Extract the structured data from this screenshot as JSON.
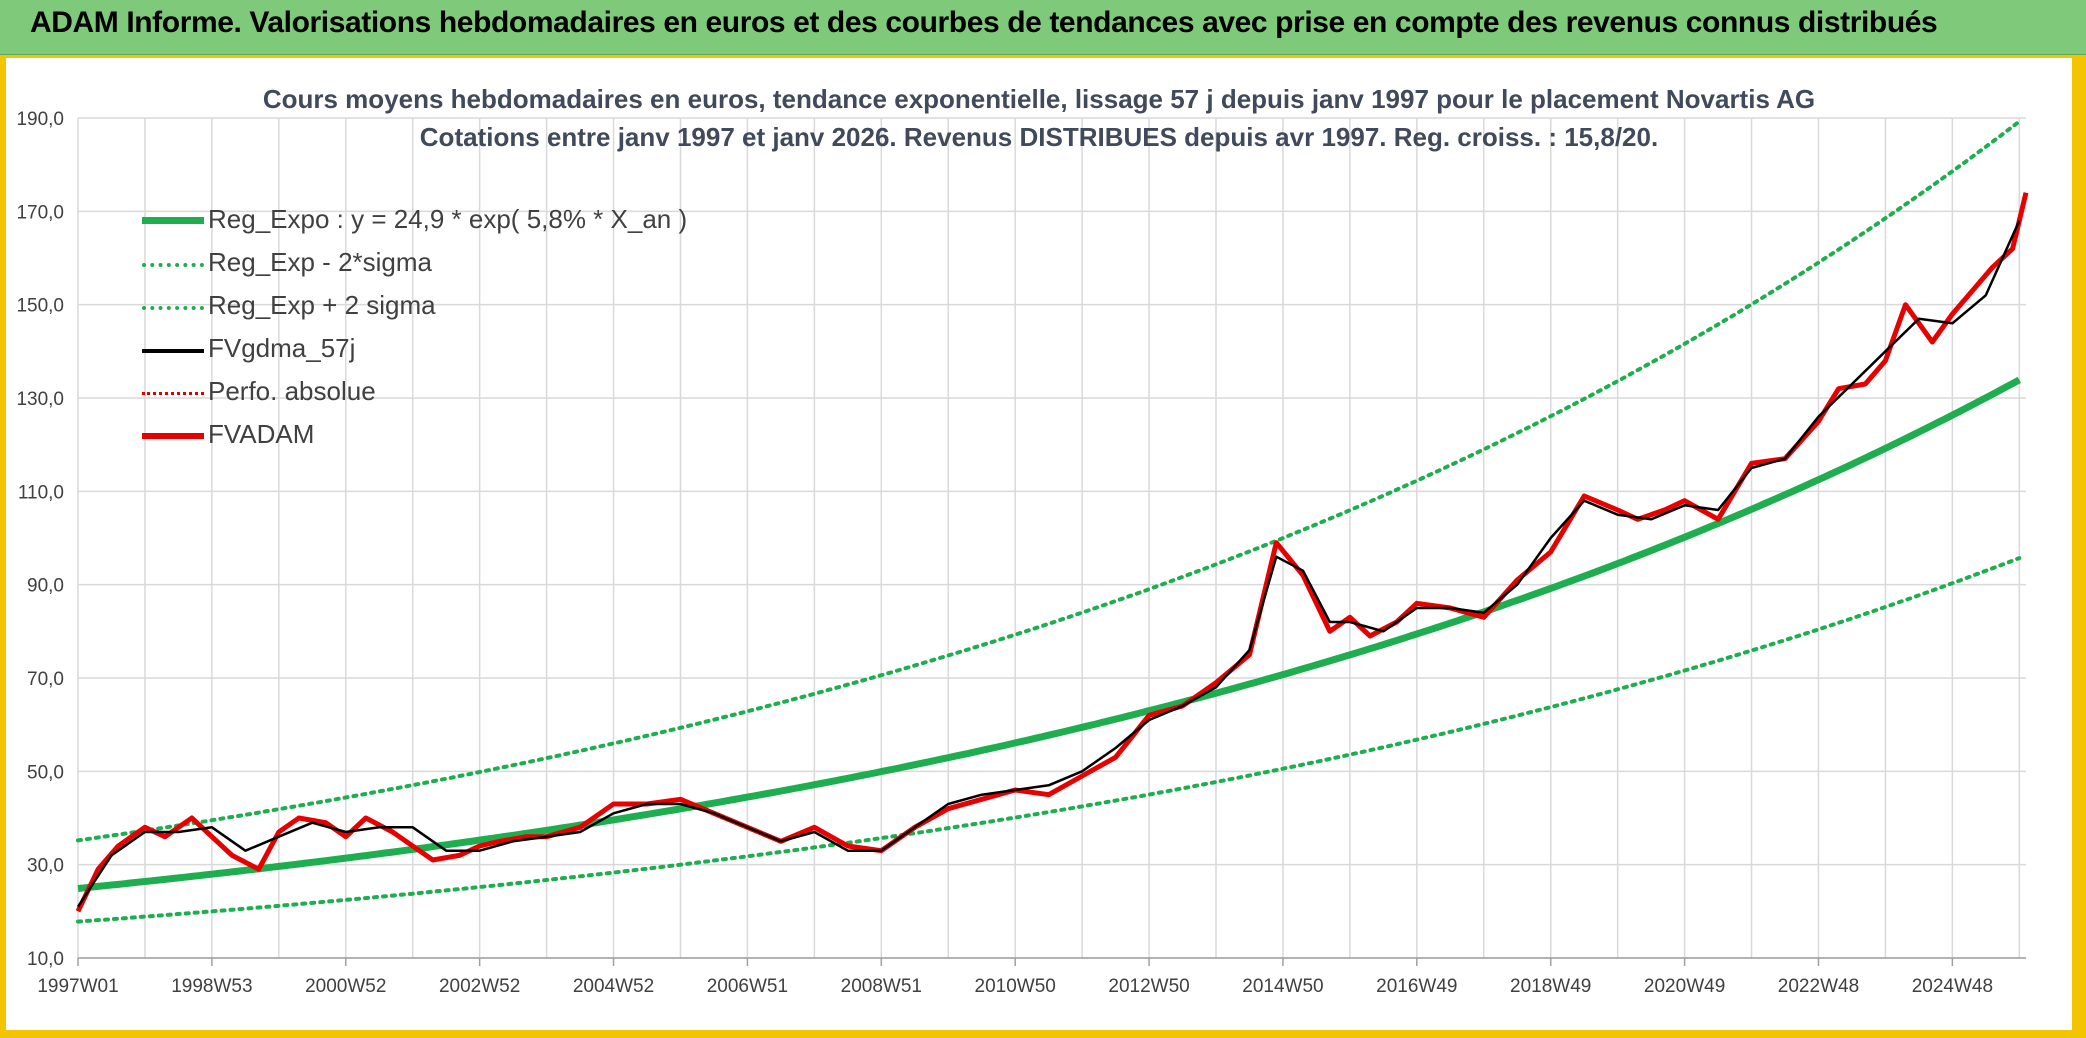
{
  "header": {
    "title": "ADAM Informe. Valorisations hebdomadaires en euros et des courbes de tendances avec prise en compte des revenus connus distribués"
  },
  "chart_data": {
    "type": "line",
    "title": "Cours moyens hebdomadaires en euros, tendance exponentielle, lissage 57 j depuis janv 1997 pour le placement Novartis AG",
    "subtitle": "Cotations entre janv 1997 et janv 2026. Revenus DISTRIBUES depuis avr 1997. Reg. croiss. : 15,8/20.",
    "xlabel": "",
    "ylabel": "",
    "x_tick_labels": [
      "1997W01",
      "1998W53",
      "2000W52",
      "2002W52",
      "2004W52",
      "2006W51",
      "2008W51",
      "2010W50",
      "2012W50",
      "2014W50",
      "2016W49",
      "2018W49",
      "2020W49",
      "2022W48",
      "2024W48"
    ],
    "y_tick_labels": [
      "10,0",
      "30,0",
      "50,0",
      "70,0",
      "90,0",
      "110,0",
      "130,0",
      "150,0",
      "170,0",
      "190,0"
    ],
    "ylim": [
      10,
      190
    ],
    "xlim": [
      1997.0,
      2026.1
    ],
    "grid": true,
    "legend_position": "top-left",
    "legend": [
      {
        "name": "Reg_Expo : y = 24,9 * exp( 5,8% *  X_an )",
        "color": "#1fae4f",
        "style": "solid-thick"
      },
      {
        "name": "Reg_Exp - 2*sigma",
        "color": "#1fae4f",
        "style": "dotted"
      },
      {
        "name": "Reg_Exp + 2 sigma",
        "color": "#1fae4f",
        "style": "dotted"
      },
      {
        "name": "FVgdma_57j",
        "color": "#000000",
        "style": "solid"
      },
      {
        "name": "Perfo. absolue",
        "color": "#e00000",
        "style": "dotted-thin"
      },
      {
        "name": "FVADAM",
        "color": "#e60000",
        "style": "solid-thick"
      }
    ],
    "regression": {
      "a": 24.9,
      "b": 0.058,
      "minus_2sigma_start": 17.8,
      "plus_2sigma_start": 35.2
    },
    "series": [
      {
        "name": "FVADAM",
        "x": [
          1997.0,
          1997.3,
          1997.6,
          1998.0,
          1998.3,
          1998.7,
          1999.0,
          1999.3,
          1999.7,
          2000.0,
          2000.3,
          2000.7,
          2001.0,
          2001.3,
          2001.7,
          2002.0,
          2002.3,
          2002.7,
          2003.0,
          2003.3,
          2003.7,
          2004.0,
          2004.5,
          2005.0,
          2005.5,
          2006.0,
          2006.5,
          2007.0,
          2007.5,
          2008.0,
          2008.5,
          2009.0,
          2009.5,
          2010.0,
          2010.5,
          2011.0,
          2011.5,
          2012.0,
          2012.5,
          2013.0,
          2013.5,
          2014.0,
          2014.5,
          2014.9,
          2015.3,
          2015.7,
          2016.0,
          2016.3,
          2016.7,
          2017.0,
          2017.5,
          2018.0,
          2018.5,
          2019.0,
          2019.5,
          2020.0,
          2020.3,
          2020.7,
          2021.0,
          2021.5,
          2022.0,
          2022.5,
          2023.0,
          2023.3,
          2023.7,
          2024.0,
          2024.3,
          2024.7,
          2025.0,
          2025.3,
          2025.6,
          2025.9,
          2026.1
        ],
        "y": [
          20,
          29,
          34,
          38,
          36,
          40,
          36,
          32,
          29,
          37,
          40,
          39,
          36,
          40,
          37,
          34,
          31,
          32,
          34,
          35,
          36,
          36,
          38,
          43,
          43,
          44,
          41,
          38,
          35,
          38,
          34,
          33,
          38,
          42,
          44,
          46,
          45,
          49,
          53,
          62,
          64,
          69,
          75,
          99,
          92,
          80,
          83,
          79,
          82,
          86,
          85,
          83,
          91,
          97,
          109,
          106,
          104,
          106,
          108,
          104,
          116,
          117,
          125,
          132,
          133,
          138,
          150,
          142,
          148,
          153,
          158,
          162,
          174
        ]
      },
      {
        "name": "FVgdma_57j",
        "x": [
          1997.0,
          1997.5,
          1998.0,
          1998.5,
          1999.0,
          1999.5,
          2000.0,
          2000.5,
          2001.0,
          2001.5,
          2002.0,
          2002.5,
          2003.0,
          2003.5,
          2004.0,
          2004.5,
          2005.0,
          2005.5,
          2006.0,
          2006.5,
          2007.0,
          2007.5,
          2008.0,
          2008.5,
          2009.0,
          2009.5,
          2010.0,
          2010.5,
          2011.0,
          2011.5,
          2012.0,
          2012.5,
          2013.0,
          2013.5,
          2014.0,
          2014.5,
          2014.9,
          2015.3,
          2015.7,
          2016.0,
          2016.5,
          2017.0,
          2017.5,
          2018.0,
          2018.5,
          2019.0,
          2019.5,
          2020.0,
          2020.5,
          2021.0,
          2021.5,
          2022.0,
          2022.5,
          2023.0,
          2023.5,
          2024.0,
          2024.5,
          2025.0,
          2025.5,
          2026.0
        ],
        "y": [
          21,
          32,
          37,
          37,
          38,
          33,
          36,
          39,
          37,
          38,
          38,
          33,
          33,
          35,
          36,
          37,
          41,
          43,
          43,
          41,
          38,
          35,
          37,
          33,
          33,
          38,
          43,
          45,
          46,
          47,
          50,
          55,
          61,
          64,
          68,
          76,
          96,
          93,
          82,
          82,
          80,
          85,
          85,
          84,
          90,
          100,
          108,
          105,
          104,
          107,
          106,
          115,
          117,
          126,
          133,
          140,
          147,
          146,
          152,
          168
        ]
      }
    ]
  }
}
